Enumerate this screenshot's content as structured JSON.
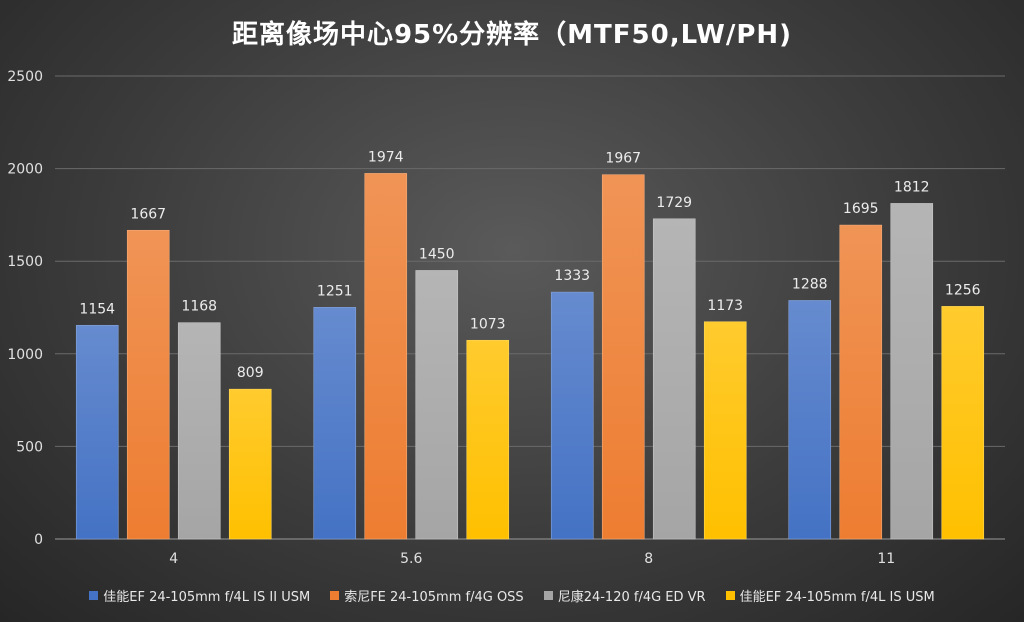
{
  "chart_data": {
    "type": "bar",
    "title": "距离像场中心95%分辨率（MTF50,LW/PH)",
    "categories": [
      "4",
      "5.6",
      "8",
      "11"
    ],
    "ylim": [
      0,
      2500
    ],
    "yticks": [
      0,
      500,
      1000,
      1500,
      2000,
      2500
    ],
    "grid": true,
    "legend_position": "bottom",
    "series": [
      {
        "name": "佳能EF 24-105mm f/4L IS II USM",
        "values": [
          1154,
          1251,
          1333,
          1288
        ],
        "color": "#4472c4"
      },
      {
        "name": "索尼FE 24-105mm f/4G OSS",
        "values": [
          1667,
          1974,
          1967,
          1695
        ],
        "color": "#ed7d31"
      },
      {
        "name": "尼康24-120 f/4G ED VR",
        "values": [
          1168,
          1450,
          1729,
          1812
        ],
        "color": "#a5a5a5"
      },
      {
        "name": "佳能EF 24-105mm f/4L IS  USM",
        "values": [
          809,
          1073,
          1173,
          1256
        ],
        "color": "#ffc000"
      }
    ]
  }
}
